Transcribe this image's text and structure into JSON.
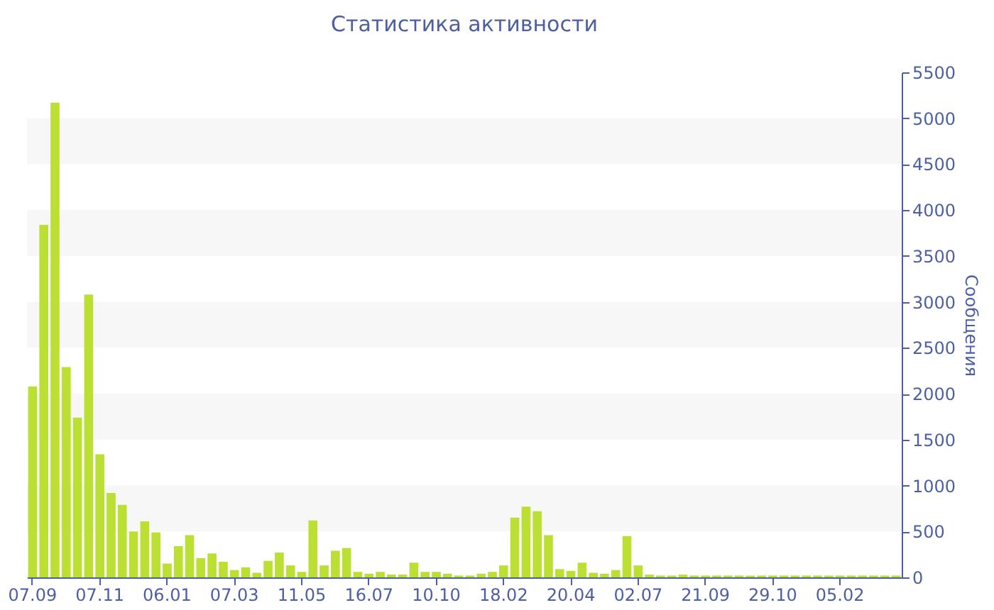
{
  "chart_data": {
    "type": "bar",
    "title": "Статистика активности",
    "ylabel": "Сообщения",
    "categories": [
      "07.09",
      null,
      null,
      null,
      null,
      null,
      "07.11",
      null,
      null,
      null,
      null,
      null,
      "06.01",
      null,
      null,
      null,
      null,
      null,
      "07.03",
      null,
      null,
      null,
      null,
      null,
      "11.05",
      null,
      null,
      null,
      null,
      null,
      "16.07",
      null,
      null,
      null,
      null,
      null,
      "10.10",
      null,
      null,
      null,
      null,
      null,
      "18.02",
      null,
      null,
      null,
      null,
      null,
      "20.04",
      null,
      null,
      null,
      null,
      null,
      "02.07",
      null,
      null,
      null,
      null,
      null,
      "21.09",
      null,
      null,
      null,
      null,
      null,
      "29.10",
      null,
      null,
      null,
      null,
      null,
      "05.02",
      null,
      null,
      null,
      null,
      null
    ],
    "values": [
      2080,
      3840,
      5170,
      2290,
      1740,
      3080,
      1340,
      920,
      790,
      500,
      610,
      490,
      150,
      340,
      460,
      210,
      260,
      170,
      80,
      110,
      50,
      180,
      270,
      130,
      60,
      620,
      130,
      290,
      320,
      60,
      40,
      60,
      30,
      30,
      160,
      60,
      60,
      40,
      20,
      20,
      40,
      60,
      130,
      650,
      770,
      720,
      460,
      90,
      70,
      160,
      50,
      40,
      80,
      450,
      130,
      30,
      20,
      20,
      30,
      20,
      20,
      20,
      20,
      20,
      20,
      20,
      20,
      20,
      20,
      20,
      20,
      20,
      20,
      20,
      20,
      20,
      20,
      20
    ],
    "color": "#bbe033",
    "ylim": [
      0,
      5500
    ],
    "yticks": [
      0,
      500,
      1000,
      1500,
      2000,
      2500,
      3000,
      3500,
      4000,
      4500,
      5000,
      5500
    ],
    "bands": [
      {
        "axis": "y",
        "from": 500,
        "to": 1000,
        "color": "#f7f7f7"
      },
      {
        "axis": "y",
        "from": 1500,
        "to": 2000,
        "color": "#f7f7f7"
      },
      {
        "axis": "y",
        "from": 2500,
        "to": 3000,
        "color": "#f7f7f7"
      },
      {
        "axis": "y",
        "from": 3500,
        "to": 4000,
        "color": "#f7f7f7"
      },
      {
        "axis": "y",
        "from": 4500,
        "to": 5000,
        "color": "#f7f7f7"
      }
    ],
    "grid": false
  }
}
